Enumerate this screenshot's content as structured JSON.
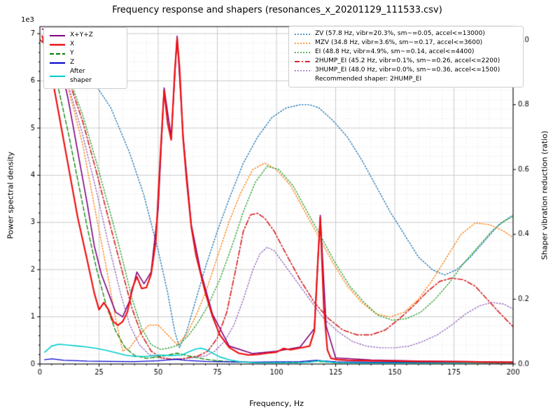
{
  "chart_data": {
    "type": "line",
    "title": "Frequency response and shapers (resonances_x_20201129_111533.csv)",
    "xlabel": "Frequency, Hz",
    "ylabel_left": "Power spectral density",
    "ylabel_right": "Shaper vibration reduction (ratio)",
    "left_offset_text": "1e3",
    "x_range": [
      0,
      200
    ],
    "left_range": [
      0,
      7150
    ],
    "right_range": [
      0,
      1.041
    ],
    "xticks": {
      "values": [
        0,
        25,
        50,
        75,
        100,
        125,
        150,
        175,
        200
      ],
      "labels": [
        "0",
        "25",
        "50",
        "75",
        "100",
        "125",
        "150",
        "175",
        "200"
      ]
    },
    "left_ticks": {
      "values": [
        0,
        1000,
        2000,
        3000,
        4000,
        5000,
        6000,
        7000
      ],
      "labels": [
        "0",
        "1",
        "2",
        "3",
        "4",
        "5",
        "6",
        "7"
      ]
    },
    "right_ticks": {
      "values": [
        0,
        0.2,
        0.4,
        0.6,
        0.8,
        1.0
      ],
      "labels": [
        "0.0",
        "0.2",
        "0.4",
        "0.6",
        "0.8",
        "1.0"
      ]
    },
    "x_minor_step": 5,
    "left_minor_step": 200,
    "grid": "major+minor",
    "recommended_shaper": "2HUMP_EI",
    "series": [
      {
        "name": "X+Y+Z",
        "axis": "left",
        "color": "#800080",
        "style": "solid",
        "width": 1.6,
        "zorder": 6,
        "x": [
          1,
          4,
          8,
          12,
          16,
          20,
          23,
          26,
          29,
          32,
          35,
          38,
          41,
          44,
          47,
          50,
          52.5,
          55.5,
          58,
          60.5,
          64,
          68,
          73,
          80,
          90,
          100,
          110,
          116,
          118.5,
          121,
          125,
          140,
          160,
          180,
          200
        ],
        "y": [
          7100,
          7050,
          6500,
          5600,
          4500,
          3400,
          2500,
          1900,
          1500,
          1100,
          1000,
          1350,
          1950,
          1700,
          1950,
          3300,
          5850,
          4800,
          6950,
          4850,
          2950,
          1950,
          1050,
          380,
          220,
          270,
          360,
          750,
          3150,
          800,
          130,
          85,
          62,
          50,
          40
        ]
      },
      {
        "name": "X",
        "axis": "left",
        "color": "#ee1111",
        "style": "solid",
        "width": 2.2,
        "zorder": 10,
        "x": [
          1,
          4,
          8,
          12,
          16,
          20,
          23,
          25,
          27,
          29,
          31,
          33,
          35,
          37,
          39,
          41,
          43,
          45,
          47,
          49,
          51,
          52.5,
          54,
          55.5,
          57,
          58,
          59,
          60.5,
          62,
          64,
          66,
          68,
          70,
          73,
          76,
          80,
          84,
          88,
          92,
          96,
          100,
          103,
          106,
          109,
          112,
          114,
          116,
          117.5,
          118.5,
          120,
          121.5,
          123,
          126,
          130,
          140,
          150,
          160,
          170,
          180,
          190,
          200
        ],
        "y": [
          6950,
          6400,
          5300,
          4200,
          3100,
          2200,
          1500,
          1150,
          1300,
          1150,
          900,
          820,
          900,
          1100,
          1600,
          1850,
          1600,
          1620,
          1900,
          2600,
          4500,
          5800,
          5100,
          4750,
          6200,
          6900,
          6300,
          4800,
          3900,
          2900,
          2300,
          1900,
          1500,
          1000,
          620,
          350,
          230,
          190,
          200,
          230,
          250,
          330,
          300,
          330,
          360,
          380,
          700,
          2200,
          3100,
          1200,
          300,
          120,
          90,
          80,
          70,
          60,
          55,
          50,
          45,
          40,
          35
        ]
      },
      {
        "name": "Y",
        "axis": "left",
        "color": "#007f00",
        "style": "dashed",
        "width": 1.3,
        "zorder": 7,
        "x": [
          2,
          5,
          8,
          12,
          16,
          20,
          24,
          28,
          32,
          36,
          40,
          45,
          50,
          55,
          58,
          62,
          66,
          70,
          75,
          80,
          90,
          100,
          110,
          117,
          119,
          125,
          140,
          160,
          180,
          200
        ],
        "y": [
          6700,
          6400,
          5800,
          4900,
          3900,
          2900,
          2000,
          1250,
          700,
          350,
          180,
          120,
          150,
          200,
          230,
          180,
          140,
          100,
          70,
          50,
          35,
          30,
          35,
          60,
          50,
          30,
          25,
          22,
          20,
          18
        ]
      },
      {
        "name": "Z",
        "axis": "left",
        "color": "#0000cd",
        "style": "solid",
        "width": 1.3,
        "zorder": 8,
        "x": [
          2,
          5,
          10,
          20,
          30,
          40,
          50,
          55,
          58,
          62,
          70,
          80,
          90,
          100,
          110,
          117,
          119,
          125,
          140,
          160,
          180,
          200
        ],
        "y": [
          90,
          110,
          80,
          60,
          55,
          50,
          70,
          90,
          100,
          75,
          55,
          45,
          40,
          45,
          50,
          80,
          70,
          45,
          40,
          38,
          35,
          30
        ]
      },
      {
        "name": "After shaper",
        "axis": "left",
        "color": "#00cccc",
        "style": "solid",
        "width": 1.6,
        "zorder": 9,
        "x": [
          2,
          5,
          8,
          12,
          16,
          20,
          24,
          28,
          32,
          36,
          40,
          45,
          50,
          55,
          60,
          63,
          66,
          68,
          70,
          73,
          76,
          80,
          85,
          90,
          100,
          110,
          115,
          118,
          121,
          125,
          135,
          150,
          170,
          190,
          200
        ],
        "y": [
          250,
          380,
          420,
          400,
          380,
          360,
          330,
          290,
          240,
          190,
          160,
          160,
          190,
          180,
          190,
          260,
          320,
          335,
          310,
          230,
          150,
          90,
          45,
          30,
          25,
          30,
          45,
          70,
          50,
          30,
          22,
          20,
          18,
          30,
          35
        ]
      },
      {
        "name": "ZV",
        "axis": "right",
        "color": "#1f77b4",
        "style": "dotted",
        "width": 1.4,
        "zorder": 1,
        "x": [
          0,
          10,
          20,
          30,
          38,
          44,
          50,
          54,
          57,
          59,
          62,
          66,
          70,
          75,
          80,
          86,
          92,
          98,
          104,
          110,
          114,
          118,
          124,
          130,
          136,
          142,
          148,
          154,
          160,
          166,
          171,
          176,
          182,
          188,
          194,
          200
        ],
        "y": [
          1.0,
          0.97,
          0.9,
          0.79,
          0.65,
          0.52,
          0.35,
          0.22,
          0.1,
          0.05,
          0.1,
          0.2,
          0.3,
          0.41,
          0.51,
          0.62,
          0.7,
          0.76,
          0.79,
          0.8,
          0.8,
          0.79,
          0.75,
          0.7,
          0.63,
          0.55,
          0.47,
          0.4,
          0.33,
          0.29,
          0.275,
          0.29,
          0.33,
          0.38,
          0.43,
          0.46
        ]
      },
      {
        "name": "MZV",
        "axis": "right",
        "color": "#ff7f0e",
        "style": "dotted",
        "width": 1.4,
        "zorder": 2,
        "x": [
          0,
          6,
          12,
          18,
          24,
          28,
          32,
          35,
          38,
          42,
          46,
          50,
          54,
          58,
          62,
          66,
          70,
          75,
          80,
          85,
          90,
          95,
          100,
          106,
          112,
          118,
          124,
          130,
          136,
          142,
          148,
          154,
          160,
          166,
          172,
          178,
          184,
          190,
          196,
          200
        ],
        "y": [
          1.0,
          0.96,
          0.85,
          0.68,
          0.45,
          0.3,
          0.14,
          0.04,
          0.05,
          0.09,
          0.12,
          0.12,
          0.09,
          0.06,
          0.09,
          0.15,
          0.22,
          0.33,
          0.44,
          0.53,
          0.6,
          0.62,
          0.6,
          0.55,
          0.47,
          0.39,
          0.31,
          0.24,
          0.19,
          0.155,
          0.145,
          0.16,
          0.2,
          0.26,
          0.33,
          0.4,
          0.435,
          0.43,
          0.41,
          0.39
        ]
      },
      {
        "name": "EI",
        "axis": "right",
        "color": "#2ca02c",
        "style": "dotted",
        "width": 1.4,
        "zorder": 3,
        "x": [
          0,
          6,
          12,
          18,
          24,
          30,
          35,
          39,
          43,
          47,
          51,
          55,
          59,
          63,
          67,
          71,
          76,
          81,
          86,
          91,
          96,
          101,
          107,
          113,
          119,
          125,
          131,
          137,
          143,
          149,
          155,
          161,
          167,
          173,
          179,
          185,
          191,
          196,
          200
        ],
        "y": [
          1.0,
          0.97,
          0.89,
          0.77,
          0.62,
          0.46,
          0.32,
          0.2,
          0.11,
          0.06,
          0.045,
          0.05,
          0.06,
          0.09,
          0.13,
          0.18,
          0.26,
          0.36,
          0.47,
          0.56,
          0.61,
          0.6,
          0.55,
          0.47,
          0.39,
          0.31,
          0.24,
          0.19,
          0.15,
          0.135,
          0.14,
          0.16,
          0.2,
          0.25,
          0.31,
          0.36,
          0.41,
          0.44,
          0.455
        ]
      },
      {
        "name": "2HUMP_EI",
        "axis": "right",
        "color": "#d62728",
        "style": "dashdot",
        "width": 1.7,
        "zorder": 5,
        "x": [
          0,
          6,
          12,
          18,
          24,
          30,
          35,
          39,
          43,
          47,
          51,
          55,
          59,
          63,
          67,
          71,
          75,
          79,
          83,
          86,
          89,
          92,
          95,
          99,
          104,
          110,
          116,
          122,
          128,
          134,
          140,
          146,
          152,
          158,
          164,
          169,
          174,
          179,
          184,
          189,
          194,
          200
        ],
        "y": [
          1.0,
          0.97,
          0.88,
          0.75,
          0.59,
          0.42,
          0.28,
          0.17,
          0.09,
          0.04,
          0.02,
          0.015,
          0.015,
          0.02,
          0.025,
          0.04,
          0.08,
          0.16,
          0.3,
          0.41,
          0.46,
          0.465,
          0.45,
          0.41,
          0.34,
          0.26,
          0.19,
          0.14,
          0.105,
          0.09,
          0.09,
          0.105,
          0.14,
          0.18,
          0.225,
          0.255,
          0.265,
          0.26,
          0.24,
          0.2,
          0.16,
          0.115
        ]
      },
      {
        "name": "3HUMP_EI",
        "axis": "right",
        "color": "#9467bd",
        "style": "dotted",
        "width": 1.4,
        "zorder": 4,
        "x": [
          0,
          6,
          12,
          18,
          24,
          29,
          34,
          38,
          42,
          46,
          50,
          55,
          60,
          65,
          70,
          74,
          78,
          82,
          86,
          90,
          93,
          96,
          99,
          103,
          108,
          114,
          120,
          126,
          132,
          138,
          144,
          150,
          156,
          162,
          168,
          174,
          180,
          186,
          191,
          196,
          200
        ],
        "y": [
          1.0,
          0.96,
          0.86,
          0.71,
          0.53,
          0.37,
          0.22,
          0.12,
          0.06,
          0.03,
          0.02,
          0.015,
          0.015,
          0.02,
          0.025,
          0.04,
          0.07,
          0.12,
          0.2,
          0.29,
          0.34,
          0.36,
          0.35,
          0.31,
          0.26,
          0.2,
          0.14,
          0.1,
          0.07,
          0.055,
          0.05,
          0.05,
          0.055,
          0.07,
          0.09,
          0.12,
          0.155,
          0.18,
          0.19,
          0.185,
          0.17
        ]
      }
    ],
    "legend_psd": [
      {
        "label": "X+Y+Z",
        "color": "#800080",
        "style": "solid",
        "width": 2
      },
      {
        "label": "X",
        "color": "#ee1111",
        "style": "solid",
        "width": 2.4
      },
      {
        "label": "Y",
        "color": "#007f00",
        "style": "dashed",
        "width": 2
      },
      {
        "label": "Z",
        "color": "#0000cd",
        "style": "solid",
        "width": 2
      },
      {
        "label": "After\nshaper",
        "color": "#00cccc",
        "style": "solid",
        "width": 2
      }
    ],
    "legend_shapers": [
      {
        "label": "ZV (57.8 Hz, vibr=20.3%, sm~=0.05, accel<=13000)",
        "color": "#1f77b4",
        "style": "dotted",
        "width": 2
      },
      {
        "label": "MZV (34.8 Hz, vibr=3.6%, sm~=0.17, accel<=3600)",
        "color": "#ff7f0e",
        "style": "dotted",
        "width": 2
      },
      {
        "label": "EI (48.8 Hz, vibr=4.9%, sm~=0.14, accel<=4400)",
        "color": "#2ca02c",
        "style": "dotted",
        "width": 2
      },
      {
        "label": "2HUMP_EI (45.2 Hz, vibr=0.1%, sm~=0.26, accel<=2200)",
        "color": "#d62728",
        "style": "dashdot",
        "width": 2
      },
      {
        "label": "3HUMP_EI (48.0 Hz, vibr=0.0%, sm~=0.36, accel<=1500)",
        "color": "#9467bd",
        "style": "dotted",
        "width": 2
      },
      {
        "label": "Recommended shaper: 2HUMP_EI",
        "color": "#000000",
        "style": "none",
        "width": 0
      }
    ]
  }
}
